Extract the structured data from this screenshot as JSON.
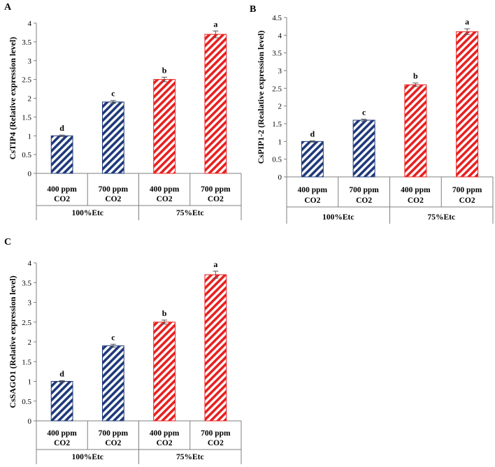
{
  "chart_data": [
    {
      "type": "bar",
      "panel_label": "A",
      "ylabel": "CsTIP4 (Relative expression level)",
      "ylim": [
        0,
        4
      ],
      "yticks": [
        "0",
        "0.5",
        "1",
        "1.5",
        "2",
        "2.5",
        "3",
        "3.5",
        "4"
      ],
      "tick_values": [
        0,
        0.5,
        1,
        1.5,
        2,
        2.5,
        3,
        3.5,
        4
      ],
      "categories": [
        [
          "400 ppm",
          "CO2"
        ],
        [
          "700 ppm",
          "CO2"
        ],
        [
          "400 ppm",
          "CO2"
        ],
        [
          "700 ppm",
          "CO2"
        ]
      ],
      "groups": [
        "100%Etc",
        "75%Etc"
      ],
      "values": [
        1.0,
        1.9,
        2.5,
        3.7
      ],
      "errors": [
        0.02,
        0.04,
        0.06,
        0.09
      ],
      "significance": [
        "d",
        "c",
        "b",
        "a"
      ],
      "bar_colors": [
        "#1f3a7a",
        "#1f3a7a",
        "#e82020",
        "#e82020"
      ]
    },
    {
      "type": "bar",
      "panel_label": "B",
      "ylabel": "CsPIP1-2 (Realative  expression level)",
      "ylim": [
        0,
        4.5
      ],
      "yticks": [
        "0",
        "0.5",
        "1",
        "1.5",
        "2",
        "2.5",
        "3",
        "3.5",
        "4",
        "4.5"
      ],
      "tick_values": [
        0,
        0.5,
        1,
        1.5,
        2,
        2.5,
        3,
        3.5,
        4,
        4.5
      ],
      "categories": [
        [
          "400 ppm",
          "CO2"
        ],
        [
          "700 ppm",
          "CO2"
        ],
        [
          "400 ppm",
          "CO2"
        ],
        [
          "700 ppm",
          "CO2"
        ]
      ],
      "groups": [
        "100%Etc",
        "75%Etc"
      ],
      "values": [
        1.0,
        1.6,
        2.6,
        4.1
      ],
      "errors": [
        0.02,
        0.03,
        0.05,
        0.08
      ],
      "significance": [
        "d",
        "c",
        "b",
        "a"
      ],
      "bar_colors": [
        "#1f3a7a",
        "#1f3a7a",
        "#e82020",
        "#e82020"
      ]
    },
    {
      "type": "bar",
      "panel_label": "C",
      "ylabel": "CsSAGO1 (Relative expression level)",
      "ylim": [
        0,
        4
      ],
      "yticks": [
        "0",
        "0.5",
        "1",
        "1.5",
        "2",
        "2.5",
        "3",
        "3.5",
        "4"
      ],
      "tick_values": [
        0,
        0.5,
        1,
        1.5,
        2,
        2.5,
        3,
        3.5,
        4
      ],
      "categories": [
        [
          "400 ppm",
          "CO2"
        ],
        [
          "700 ppm",
          "CO2"
        ],
        [
          "400 ppm",
          "CO2"
        ],
        [
          "700 ppm",
          "CO2"
        ]
      ],
      "groups": [
        "100%Etc",
        "75%Etc"
      ],
      "values": [
        1.0,
        1.9,
        2.5,
        3.7
      ],
      "errors": [
        0.02,
        0.04,
        0.05,
        0.09
      ],
      "significance": [
        "d",
        "c",
        "b",
        "a"
      ],
      "bar_colors": [
        "#1f3a7a",
        "#1f3a7a",
        "#e82020",
        "#e82020"
      ]
    }
  ]
}
